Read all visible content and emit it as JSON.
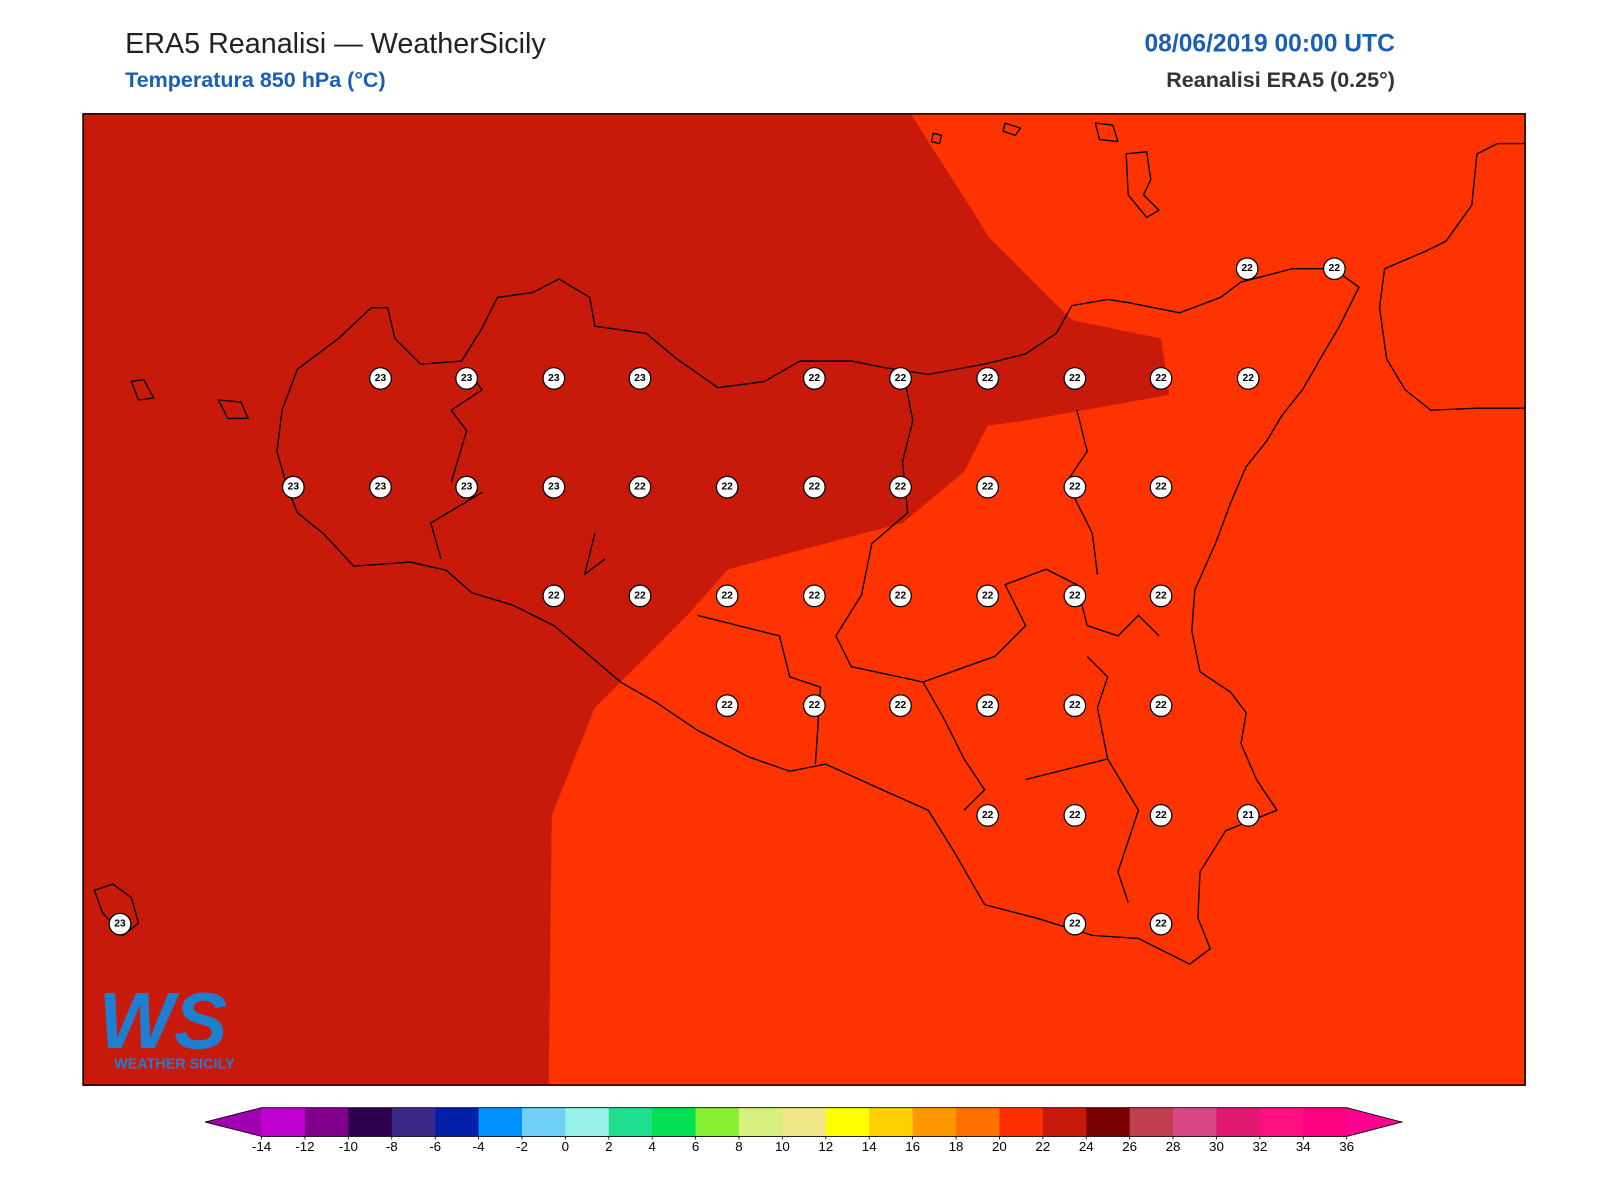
{
  "header": {
    "title": "ERA5 Reanalisi — WeatherSicily",
    "subtitle": "Temperatura 850 hPa (°C)",
    "datetime": "08/06/2019 00:00 UTC",
    "source": "Reanalisi ERA5 (0.25°)"
  },
  "stations": {
    "values": [
      22,
      22,
      23,
      23,
      23,
      23,
      22,
      22,
      22,
      22,
      22,
      22,
      23,
      23,
      23,
      23,
      22,
      22,
      22,
      22,
      22,
      22,
      22,
      22,
      22,
      22,
      22,
      22,
      22,
      22,
      22,
      22,
      22,
      22,
      22,
      22,
      22,
      22,
      22,
      22,
      21,
      23,
      22,
      22
    ]
  },
  "logo": {
    "letters": "WS",
    "name": "WEATHER SICILY"
  },
  "colorbar": {
    "ticks": [
      -14,
      -12,
      -10,
      -8,
      -6,
      -4,
      -2,
      0,
      2,
      4,
      6,
      8,
      10,
      12,
      14,
      16,
      18,
      20,
      22,
      24,
      26,
      28,
      30,
      32,
      34,
      36
    ],
    "colors": [
      "#a000b0",
      "#c000d0",
      "#80008c",
      "#300050",
      "#3c2888",
      "#0020a8",
      "#0090ff",
      "#70d0f8",
      "#98f0e8",
      "#20e090",
      "#00e050",
      "#88f030",
      "#d8f080",
      "#f0e888",
      "#ffff00",
      "#ffd000",
      "#ff9800",
      "#ff7000",
      "#ff3000",
      "#c81a0a",
      "#780000",
      "#c04050",
      "#d84888",
      "#e01870",
      "#ff1080",
      "#ff0080",
      "#ff0090"
    ]
  }
}
